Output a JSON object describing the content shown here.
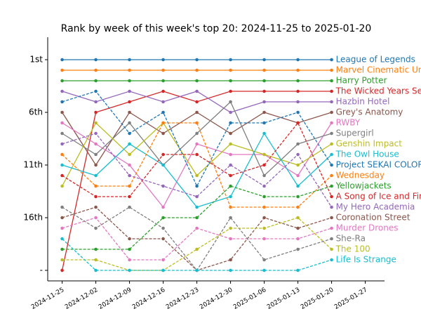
{
  "chart_data": {
    "type": "line",
    "title": "Rank by week of this week's top 20: 2024-11-25 to 2025-01-20",
    "x": [
      "2024-11-25",
      "2024-12-02",
      "2024-12-09",
      "2024-12-16",
      "2024-12-23",
      "2024-12-30",
      "2025-01-06",
      "2025-01-13",
      "2025-01-20"
    ],
    "xlim": [
      "2024-11-22",
      "2025-01-31"
    ],
    "xticks": [
      "2024-11-25",
      "2024-12-02",
      "2024-12-09",
      "2024-12-16",
      "2024-12-23",
      "2024-12-30",
      "2025-01-06",
      "2025-01-13",
      "2025-01-20",
      "2025-01-27"
    ],
    "ylim": [
      22,
      -1
    ],
    "yticks": [
      {
        "value": 1,
        "label": "1st"
      },
      {
        "value": 6,
        "label": "6th"
      },
      {
        "value": 11,
        "label": "11th"
      },
      {
        "value": 16,
        "label": "16th"
      },
      {
        "value": 21,
        "label": "-"
      }
    ],
    "series": [
      {
        "name": "League of Legends",
        "color": "#1f77b4",
        "linestyle": "solid",
        "values": [
          1,
          1,
          1,
          1,
          1,
          1,
          1,
          1,
          1
        ]
      },
      {
        "name": "Marvel Cinematic Universe",
        "color": "#ff7f0e",
        "linestyle": "solid",
        "values": [
          2,
          2,
          2,
          2,
          2,
          2,
          2,
          2,
          2
        ]
      },
      {
        "name": "Harry Potter",
        "color": "#2ca02c",
        "linestyle": "solid",
        "values": [
          3,
          3,
          3,
          3,
          3,
          3,
          3,
          3,
          3
        ]
      },
      {
        "name": "The Wicked Years Series",
        "color": "#d62728",
        "linestyle": "solid",
        "values": [
          21,
          6,
          5,
          4,
          5,
          4,
          4,
          4,
          4
        ]
      },
      {
        "name": "Hazbin Hotel",
        "color": "#9467bd",
        "linestyle": "solid",
        "values": [
          4,
          5,
          4,
          5,
          4,
          6,
          5,
          5,
          5
        ]
      },
      {
        "name": "Grey's Anatomy",
        "color": "#8c564b",
        "linestyle": "solid",
        "values": [
          6,
          11,
          6,
          8,
          6,
          8,
          6,
          7,
          6
        ]
      },
      {
        "name": "RWBY",
        "color": "#e377c2",
        "linestyle": "solid",
        "values": [
          7,
          9,
          11,
          15,
          9,
          10,
          10,
          12,
          7
        ]
      },
      {
        "name": "Supergirl",
        "color": "#7f7f7f",
        "linestyle": "solid",
        "values": [
          8,
          10,
          7,
          11,
          8,
          5,
          12,
          9,
          8
        ]
      },
      {
        "name": "Genshin Impact",
        "color": "#bcbd22",
        "linestyle": "solid",
        "values": [
          13,
          7,
          10,
          7,
          12,
          9,
          10,
          11,
          9
        ]
      },
      {
        "name": "The Owl House",
        "color": "#17becf",
        "linestyle": "solid",
        "values": [
          11,
          12,
          9,
          11,
          15,
          14,
          8,
          13,
          10
        ]
      },
      {
        "name": "Project SEKAI COLORFUL STAGE",
        "color": "#1f77b4",
        "linestyle": "dashed",
        "values": [
          5,
          4,
          8,
          6,
          13,
          7,
          7,
          6,
          11
        ]
      },
      {
        "name": "Wednesday",
        "color": "#ff7f0e",
        "linestyle": "dashed",
        "values": [
          10,
          13,
          13,
          7,
          7,
          15,
          15,
          15,
          12
        ]
      },
      {
        "name": "Yellowjackets",
        "color": "#2ca02c",
        "linestyle": "dashed",
        "values": [
          19,
          19,
          19,
          16,
          16,
          13,
          14,
          14,
          13
        ]
      },
      {
        "name": "A Song of Ice and Fire",
        "color": "#d62728",
        "linestyle": "dashed",
        "values": [
          12,
          14,
          14,
          10,
          10,
          12,
          11,
          7,
          14
        ]
      },
      {
        "name": "My Hero Academia",
        "color": "#9467bd",
        "linestyle": "dashed",
        "values": [
          9,
          8,
          12,
          13,
          14,
          11,
          13,
          10,
          15
        ]
      },
      {
        "name": "Coronation Street",
        "color": "#8c564b",
        "linestyle": "dashed",
        "values": [
          16,
          15,
          18,
          18,
          21,
          20,
          16,
          17,
          16
        ]
      },
      {
        "name": "Murder Drones",
        "color": "#e377c2",
        "linestyle": "dashed",
        "values": [
          17,
          16,
          20,
          20,
          17,
          18,
          18,
          18,
          17
        ]
      },
      {
        "name": "She-Ra",
        "color": "#7f7f7f",
        "linestyle": "dashed",
        "values": [
          15,
          17,
          15,
          17,
          21,
          16,
          20,
          19,
          18
        ]
      },
      {
        "name": "The 100",
        "color": "#bcbd22",
        "linestyle": "dashed",
        "values": [
          20,
          20,
          21,
          21,
          19,
          17,
          17,
          16,
          19
        ]
      },
      {
        "name": "Life Is Strange",
        "color": "#17becf",
        "linestyle": "dashed",
        "values": [
          18,
          21,
          21,
          21,
          21,
          21,
          21,
          21,
          20
        ]
      }
    ]
  }
}
